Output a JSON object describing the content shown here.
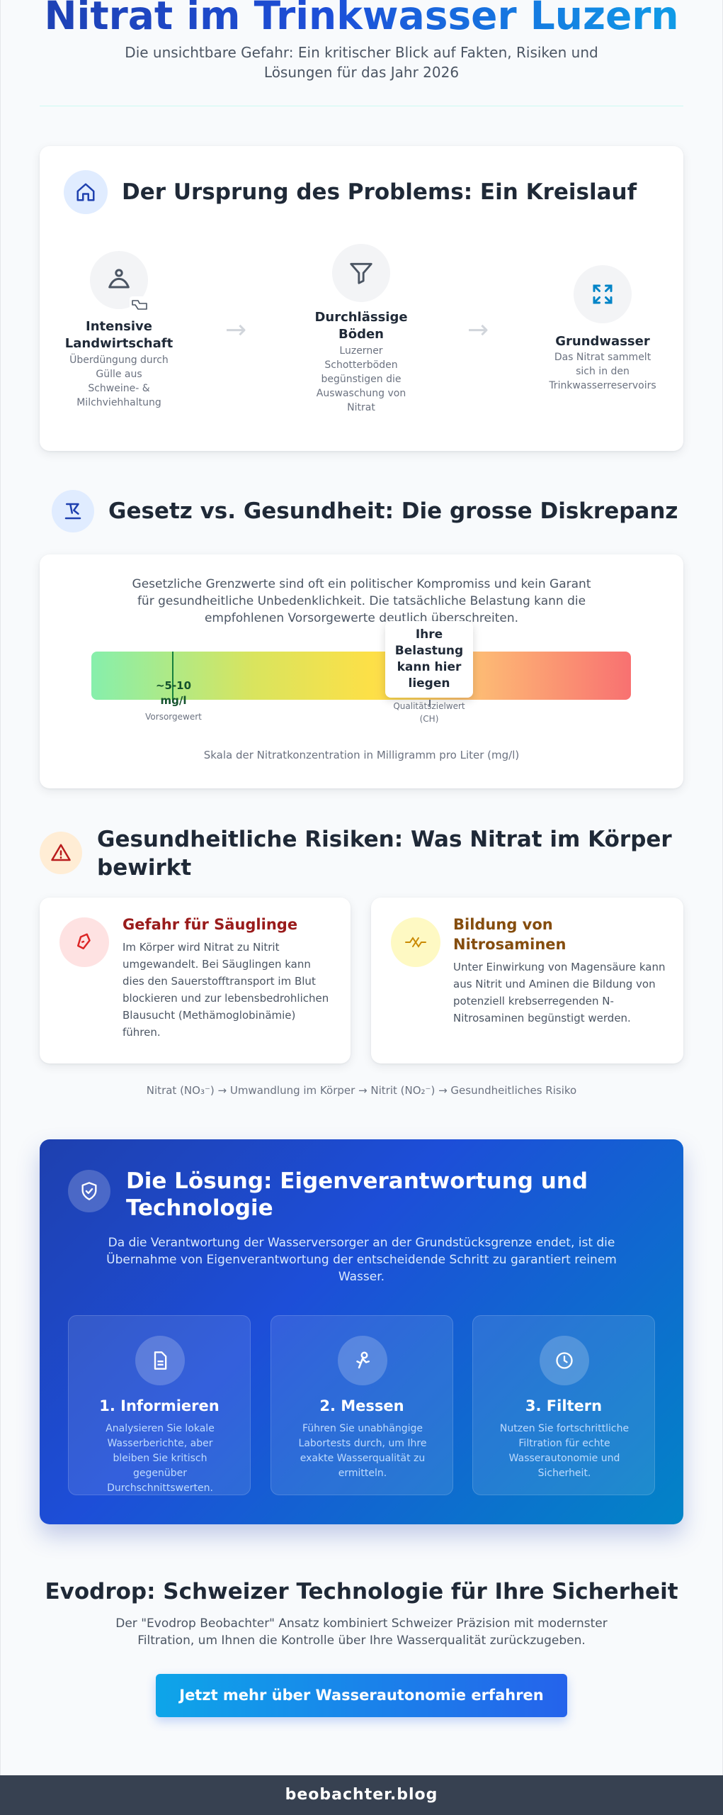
{
  "header": {
    "title": "Nitrat im Trinkwasser Luzern",
    "subtitle": "Die unsichtbare Gefahr: Ein kritischer Blick auf Fakten, Risiken und Lösungen für das Jahr 2026"
  },
  "origin": {
    "title": "Der Ursprung des Problems: Ein Kreislauf",
    "icon": "home-icon",
    "steps": [
      {
        "icon": "farm-hand-icon",
        "title": "Intensive Landwirtschaft",
        "desc": "Überdüngung durch Gülle aus Schweine- & Milchviehhaltung"
      },
      {
        "icon": "filter-icon",
        "title": "Durchlässige Böden",
        "desc": "Luzerner Schotterböden begünstigen die Auswaschung von Nitrat"
      },
      {
        "icon": "expand-icon",
        "title": "Grundwasser",
        "desc": "Das Nitrat sammelt sich in den Trinkwasserreservoirs"
      }
    ],
    "arrow": "→"
  },
  "law": {
    "title": "Gesetz vs. Gesundheit: Die grosse Diskrepanz",
    "icon": "scales-icon",
    "intro": "Gesetzliche Grenzwerte sind oft ein politischer Kompromiss und kein Garant für gesundheitliche Unbedenklichkeit. Die tatsächliche Belastung kann die empfohlenen Vorsorgewerte deutlich überschreiten.",
    "marker_precaution_value": "~5-10 mg/l",
    "marker_precaution_label": "Vorsorgewert",
    "marker_quality_label": "Qualitätszielwert (CH)",
    "tooltip": "Ihre Belastung kann hier liegen",
    "caption": "Skala der Nitratkonzentration in Milligramm pro Liter (mg/l)"
  },
  "risks": {
    "title": "Gesundheitliche Risiken: Was Nitrat im Körper bewirkt",
    "icon": "warning-icon",
    "cards": [
      {
        "icon": "baby-bottle-icon",
        "title": "Gefahr für Säuglinge",
        "desc": "Im Körper wird Nitrat zu Nitrit umgewandelt. Bei Säuglingen kann dies den Sauerstofftransport im Blut blockieren und zur lebensbedrohlichen Blausucht (Methämoglobinämie) führen.",
        "color": "#991b1b"
      },
      {
        "icon": "molecule-icon",
        "title": "Bildung von Nitrosaminen",
        "desc": "Unter Einwirkung von Magensäure kann aus Nitrit und Aminen die Bildung von potenziell krebserregenden N-Nitrosaminen begünstigt werden.",
        "color": "#854d0e"
      }
    ],
    "flow": "Nitrat (NO₃⁻) → Umwandlung im Körper → Nitrit (NO₂⁻) → Gesundheitliches Risiko"
  },
  "solution": {
    "title": "Die Lösung: Eigenverantwortung und Technologie",
    "icon": "shield-check-icon",
    "intro": "Da die Verantwortung der Wasserversorger an der Grundstücksgrenze endet, ist die Übernahme von Eigenverantwortung der entscheidende Schritt zu garantiert reinem Wasser.",
    "steps": [
      {
        "icon": "document-icon",
        "title": "1. Informieren",
        "desc": "Analysieren Sie lokale Wasserberichte, aber bleiben Sie kritisch gegenüber Durchschnittswerten."
      },
      {
        "icon": "lab-test-icon",
        "title": "2. Messen",
        "desc": "Führen Sie unabhängige Labortests durch, um Ihre exakte Wasserqualität zu ermitteln."
      },
      {
        "icon": "clock-icon",
        "title": "3. Filtern",
        "desc": "Nutzen Sie fortschrittliche Filtration für echte Wasserautonomie und Sicherheit."
      }
    ]
  },
  "evodrop": {
    "title": "Evodrop: Schweizer Technologie für Ihre Sicherheit",
    "desc": "Der \"Evodrop Beobachter\" Ansatz kombiniert Schweizer Präzision mit modernster Filtration, um Ihnen die Kontrolle über Ihre Wasserqualität zurückzugeben.",
    "cta": "Jetzt mehr über Wasserautonomie erfahren"
  },
  "footer": {
    "text": "beobachter.blog"
  }
}
